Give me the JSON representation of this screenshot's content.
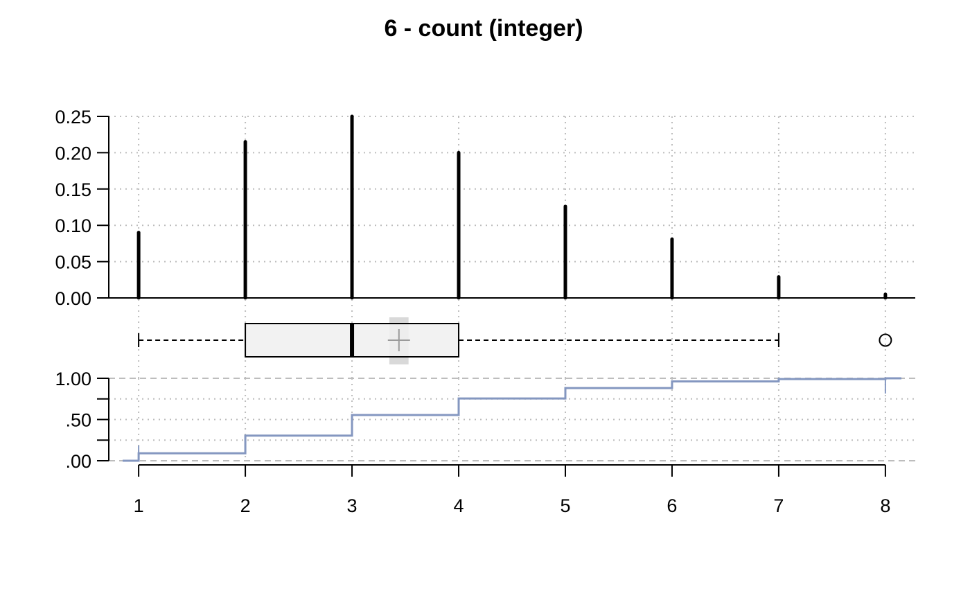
{
  "chart_data": {
    "title": "6 - count (integer)",
    "x_ticks": [
      1,
      2,
      3,
      4,
      5,
      6,
      7,
      8
    ],
    "xlim": [
      0.72,
      8.28
    ],
    "panels": [
      {
        "type": "bar",
        "style": "spikes",
        "x": [
          1,
          2,
          3,
          4,
          5,
          6,
          7,
          8
        ],
        "values": [
          0.09,
          0.215,
          0.25,
          0.2,
          0.126,
          0.081,
          0.029,
          0.005
        ],
        "ylim": [
          0,
          0.25
        ],
        "y_ticks": [
          "0.00",
          "0.05",
          "0.10",
          "0.15",
          "0.20",
          "0.25"
        ],
        "y_tick_values": [
          0,
          0.05,
          0.1,
          0.15,
          0.2,
          0.25
        ],
        "grid": "dotted"
      },
      {
        "type": "boxplot",
        "whisker_low": 1,
        "q1": 2,
        "median": 3,
        "q3": 4,
        "whisker_high": 7,
        "mean": 3.44,
        "mean_ci": [
          3.35,
          3.53
        ],
        "outliers": [
          8
        ]
      },
      {
        "type": "line",
        "style": "ecdf-step",
        "x": [
          1,
          2,
          3,
          4,
          5,
          6,
          7,
          8
        ],
        "values": [
          0.09,
          0.305,
          0.555,
          0.755,
          0.881,
          0.962,
          0.991,
          1.0
        ],
        "ylim": [
          0,
          1
        ],
        "y_ticks": [
          ".00",
          ".50",
          "1.00"
        ],
        "y_tick_values": [
          0,
          0.5,
          1
        ],
        "minor_y_ticks": [
          0.25,
          0.75
        ],
        "color": "#8497c0",
        "grid": "dashed"
      }
    ]
  }
}
